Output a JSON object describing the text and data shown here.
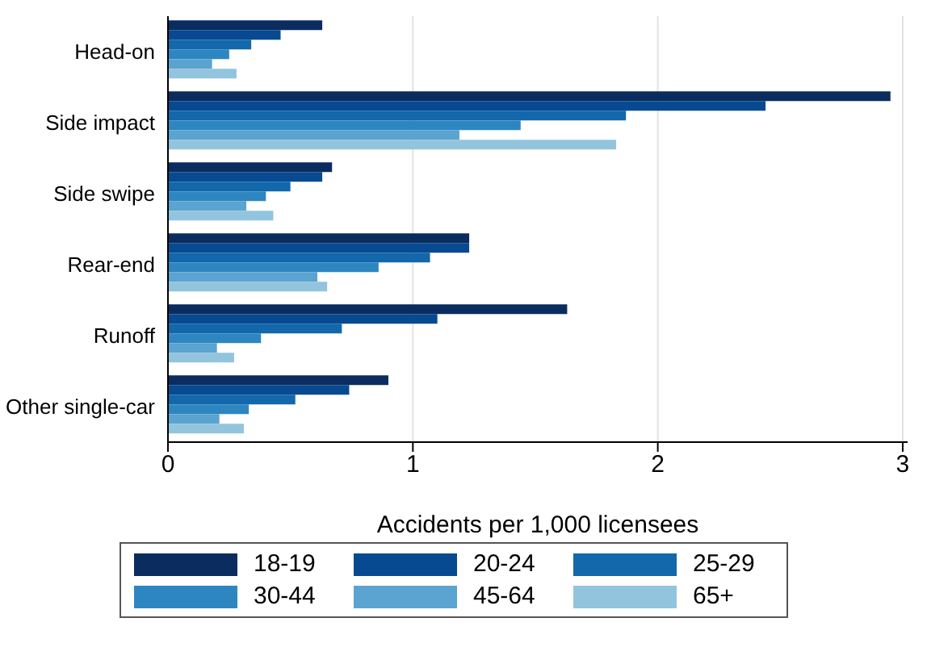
{
  "chart_data": {
    "type": "bar",
    "orientation": "horizontal",
    "xlabel": "Accidents per 1,000 licensees",
    "categories": [
      "Head-on",
      "Side impact",
      "Side swipe",
      "Rear-end",
      "Runoff",
      "Other single-car"
    ],
    "series": [
      {
        "name": "18-19",
        "color": "#0b2c5f",
        "values": [
          0.63,
          2.95,
          0.67,
          1.23,
          1.63,
          0.9
        ]
      },
      {
        "name": "20-24",
        "color": "#084a91",
        "values": [
          0.46,
          2.44,
          0.63,
          1.23,
          1.1,
          0.74
        ]
      },
      {
        "name": "25-29",
        "color": "#1367ab",
        "values": [
          0.34,
          1.87,
          0.5,
          1.07,
          0.71,
          0.52
        ]
      },
      {
        "name": "30-44",
        "color": "#2e86c1",
        "values": [
          0.25,
          1.44,
          0.4,
          0.86,
          0.38,
          0.33
        ]
      },
      {
        "name": "45-64",
        "color": "#5ba3d0",
        "values": [
          0.18,
          1.19,
          0.32,
          0.61,
          0.2,
          0.21
        ]
      },
      {
        "name": "65+",
        "color": "#92c4de",
        "values": [
          0.28,
          1.83,
          0.43,
          0.65,
          0.27,
          0.31
        ]
      }
    ],
    "xlim": [
      0,
      3.02
    ],
    "xticks": [
      0,
      1,
      2,
      3
    ],
    "grid": "x",
    "legend": "bottom"
  }
}
